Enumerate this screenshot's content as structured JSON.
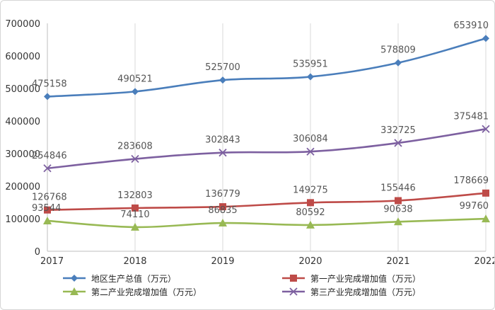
{
  "chart_data": {
    "type": "line",
    "title": "",
    "xlabel": "",
    "ylabel": "",
    "categories": [
      "2017",
      "2018",
      "2019",
      "2020",
      "2021",
      "2022"
    ],
    "ylim": [
      0,
      700000
    ],
    "yticks": [
      0,
      100000,
      200000,
      300000,
      400000,
      500000,
      600000,
      700000
    ],
    "grid": "vertical",
    "legend": "bottom",
    "series": [
      {
        "name": "地区生产总值（万元）",
        "values": [
          475158,
          490521,
          525700,
          535951,
          578809,
          653910
        ],
        "labels": [
          "475158",
          "490521",
          "525700",
          "535951",
          "578809",
          "653910"
        ],
        "color": "#4a7ebb",
        "marker": "diamond"
      },
      {
        "name": "第一产业完成增加值（万元）",
        "values": [
          126768,
          132803,
          136779,
          149275,
          155446,
          178669
        ],
        "labels": [
          "126768",
          "132803",
          "136779",
          "149275",
          "155446",
          "178669"
        ],
        "color": "#be4b48",
        "marker": "square"
      },
      {
        "name": "第二产业完成增加值（万元）",
        "values": [
          93544,
          74110,
          86835,
          80592,
          90638,
          99760
        ],
        "labels": [
          "93544",
          "74110",
          "86835",
          "80592",
          "90638",
          "99760"
        ],
        "color": "#98b954",
        "marker": "triangle"
      },
      {
        "name": "第三产业完成增加值（万元）",
        "values": [
          254846,
          283608,
          302843,
          306084,
          332725,
          375481
        ],
        "labels": [
          "254846",
          "283608",
          "302843",
          "306084",
          "332725",
          "375481"
        ],
        "color": "#7d60a0",
        "marker": "x"
      }
    ]
  }
}
